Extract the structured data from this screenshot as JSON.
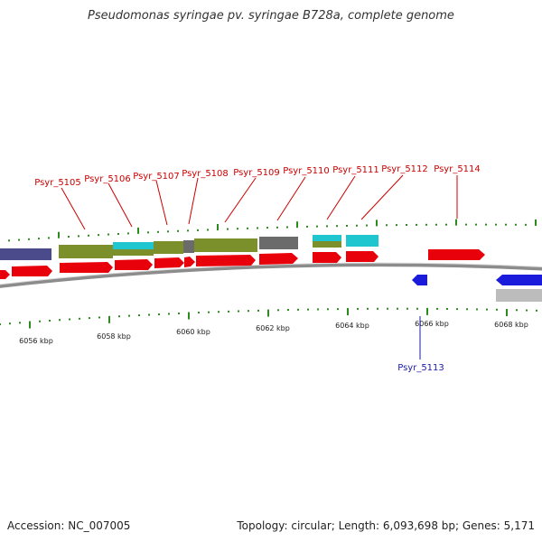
{
  "title": "Pseudomonas syringae pv. syringae B728a, complete genome",
  "footer": {
    "accession": "Accession: NC_007005",
    "summary": "Topology: circular; Length: 6,093,698 bp; Genes: 5,171"
  },
  "colors": {
    "forward_gene": "#e8000b",
    "reverse_gene": "#1b1bdc",
    "backbone": "#8c8c8c",
    "tick": "#2d8a1e",
    "label_forward": "#cc0000",
    "label_reverse": "#1a1aa8",
    "olive": "#7b8f2a",
    "cyan": "#1fc6cf",
    "grey": "#6b6b6b",
    "purple": "#4b4a8a",
    "silver": "#bcbcbc"
  },
  "scale_labels": [
    "6056 kbp",
    "6058 kbp",
    "6060 kbp",
    "6062 kbp",
    "6064 kbp",
    "6066 kbp",
    "6068 kbp"
  ],
  "gene_labels_top": [
    "Psyr_5105",
    "Psyr_5106",
    "Psyr_5107",
    "Psyr_5108",
    "Psyr_5109",
    "Psyr_5110",
    "Psyr_5111",
    "Psyr_5112",
    "Psyr_5114"
  ],
  "gene_labels_bottom": [
    "Psyr_5113"
  ]
}
